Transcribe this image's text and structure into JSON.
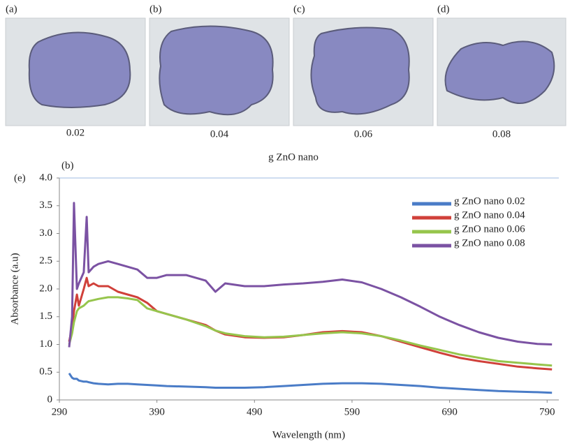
{
  "photos": [
    {
      "label": "(a)",
      "caption": "0.02"
    },
    {
      "label": "(b)",
      "caption": "0.04"
    },
    {
      "label": "(c)",
      "caption": "0.06"
    },
    {
      "label": "(d)",
      "caption": "0.08"
    }
  ],
  "photos_caption": "g ZnO nano",
  "chart_data": {
    "type": "line",
    "panel_label": "(e)",
    "subplot_label": "(b)",
    "x_label": "Wavelength (nm)",
    "y_label": "Absorbance (a.u)",
    "x": [
      300,
      303,
      305,
      308,
      310,
      315,
      318,
      320,
      325,
      330,
      340,
      350,
      360,
      370,
      380,
      390,
      400,
      420,
      440,
      450,
      460,
      480,
      500,
      520,
      540,
      560,
      580,
      600,
      620,
      640,
      660,
      680,
      700,
      720,
      740,
      760,
      780,
      795
    ],
    "series": [
      {
        "name": "g ZnO nano 0.02",
        "color": "#4a7cc7",
        "values": [
          0.48,
          0.4,
          0.38,
          0.38,
          0.35,
          0.33,
          0.33,
          0.32,
          0.3,
          0.29,
          0.28,
          0.29,
          0.29,
          0.28,
          0.27,
          0.26,
          0.25,
          0.24,
          0.23,
          0.22,
          0.22,
          0.22,
          0.23,
          0.25,
          0.27,
          0.29,
          0.3,
          0.3,
          0.29,
          0.27,
          0.25,
          0.22,
          0.2,
          0.18,
          0.16,
          0.15,
          0.14,
          0.13
        ]
      },
      {
        "name": "g ZnO nano 0.04",
        "color": "#d0403a",
        "values": [
          1.05,
          1.3,
          1.6,
          1.9,
          1.7,
          2.0,
          2.2,
          2.05,
          2.1,
          2.05,
          2.05,
          1.95,
          1.9,
          1.85,
          1.75,
          1.6,
          1.55,
          1.45,
          1.35,
          1.25,
          1.18,
          1.13,
          1.12,
          1.13,
          1.17,
          1.22,
          1.24,
          1.22,
          1.15,
          1.05,
          0.95,
          0.85,
          0.76,
          0.7,
          0.65,
          0.6,
          0.57,
          0.55
        ]
      },
      {
        "name": "g ZnO nano 0.06",
        "color": "#96c54c",
        "values": [
          1.0,
          1.2,
          1.4,
          1.6,
          1.65,
          1.7,
          1.75,
          1.78,
          1.8,
          1.82,
          1.85,
          1.85,
          1.83,
          1.8,
          1.65,
          1.6,
          1.55,
          1.45,
          1.33,
          1.25,
          1.2,
          1.15,
          1.13,
          1.14,
          1.17,
          1.2,
          1.22,
          1.2,
          1.15,
          1.07,
          0.98,
          0.9,
          0.82,
          0.76,
          0.7,
          0.67,
          0.64,
          0.62
        ]
      },
      {
        "name": "g ZnO nano 0.08",
        "color": "#7b52a3",
        "values": [
          0.95,
          1.5,
          3.55,
          2.0,
          2.1,
          2.3,
          3.3,
          2.3,
          2.4,
          2.45,
          2.5,
          2.45,
          2.4,
          2.35,
          2.2,
          2.2,
          2.25,
          2.25,
          2.15,
          1.95,
          2.1,
          2.05,
          2.05,
          2.08,
          2.1,
          2.13,
          2.17,
          2.12,
          2.0,
          1.85,
          1.68,
          1.5,
          1.35,
          1.22,
          1.12,
          1.05,
          1.01,
          1.0
        ]
      }
    ],
    "xlim": [
      290,
      802
    ],
    "xticks": [
      290,
      390,
      490,
      590,
      690,
      790
    ],
    "ylim": [
      0,
      4
    ],
    "yticks": [
      0,
      0.5,
      {
        "value": 1,
        "label": "1.0"
      },
      1.5,
      {
        "value": 2,
        "label": "2.0"
      },
      2.5,
      {
        "value": 3,
        "label": "3.0"
      },
      3.5,
      {
        "value": 4,
        "label": "4.0"
      }
    ],
    "legend": "top-right"
  }
}
